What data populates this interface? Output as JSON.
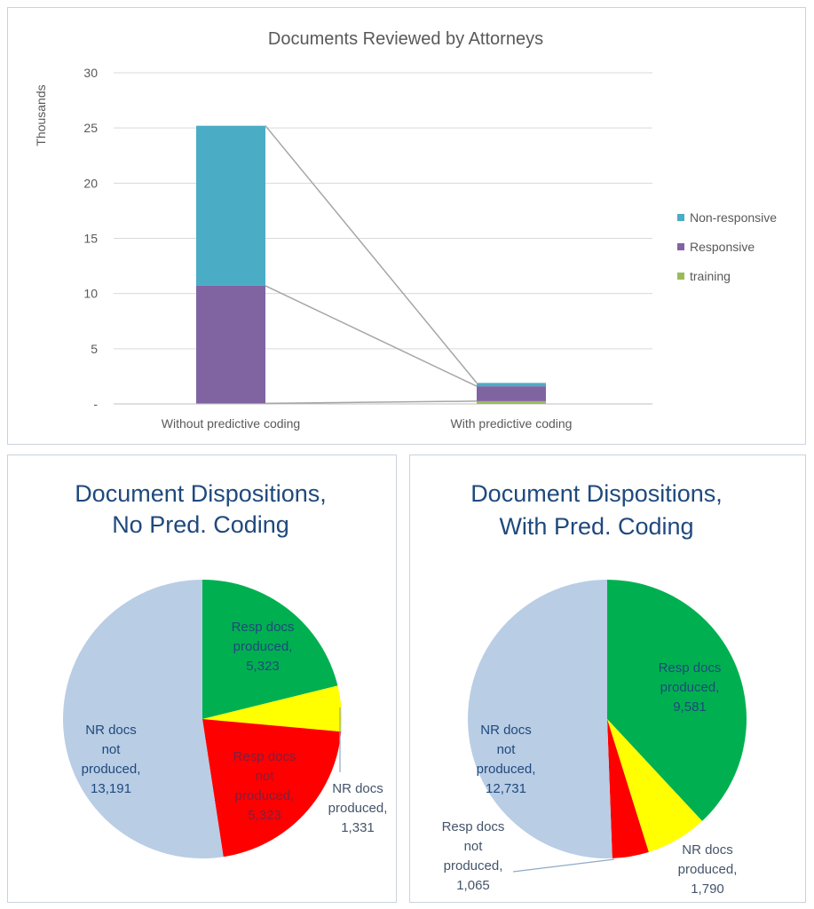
{
  "chart_data": [
    {
      "type": "bar",
      "stacked": true,
      "title": "Documents Reviewed by Attorneys",
      "ylabel": "Thousands",
      "xlabel": "",
      "ylim": [
        0,
        30
      ],
      "yticks": [
        "-",
        "5",
        "10",
        "15",
        "20",
        "25",
        "30"
      ],
      "grid": true,
      "legend_position": "right",
      "series_lines": true,
      "categories": [
        "Without predictive coding",
        "With predictive coding"
      ],
      "series": [
        {
          "name": "training",
          "values": [
            0.05,
            0.25
          ],
          "color": "#9BBB59"
        },
        {
          "name": "Responsive",
          "values": [
            10.65,
            1.35
          ],
          "color": "#8064A2"
        },
        {
          "name": "Non-responsive",
          "values": [
            14.5,
            0.3
          ],
          "color": "#4BACC6"
        }
      ]
    },
    {
      "type": "pie",
      "title": [
        "Document Dispositions,",
        "No Pred. Coding"
      ],
      "slices": [
        {
          "label": [
            "Resp docs",
            "produced,",
            "5,323"
          ],
          "value": 5323,
          "color": "#00B050"
        },
        {
          "label": [
            "NR docs",
            "produced,",
            "1,331"
          ],
          "value": 1331,
          "color": "#FFFF00"
        },
        {
          "label": [
            "Resp docs",
            "not",
            "produced,",
            "5,323"
          ],
          "value": 5323,
          "color": "#FF0000"
        },
        {
          "label": [
            "NR docs",
            "not",
            "produced,",
            "13,191"
          ],
          "value": 13191,
          "color": "#B9CDE5"
        }
      ]
    },
    {
      "type": "pie",
      "title": [
        "Document Dispositions,",
        "With Pred. Coding"
      ],
      "slices": [
        {
          "label": [
            "Resp docs",
            "produced,",
            "9,581"
          ],
          "value": 9581,
          "color": "#00B050"
        },
        {
          "label": [
            "NR docs",
            "produced,",
            "1,790"
          ],
          "value": 1790,
          "color": "#FFFF00"
        },
        {
          "label": [
            "Resp docs",
            "not",
            "produced,",
            "1,065"
          ],
          "value": 1065,
          "color": "#FF0000"
        },
        {
          "label": [
            "NR docs",
            "not",
            "produced,",
            "12,731"
          ],
          "value": 12731,
          "color": "#B9CDE5"
        }
      ]
    }
  ]
}
